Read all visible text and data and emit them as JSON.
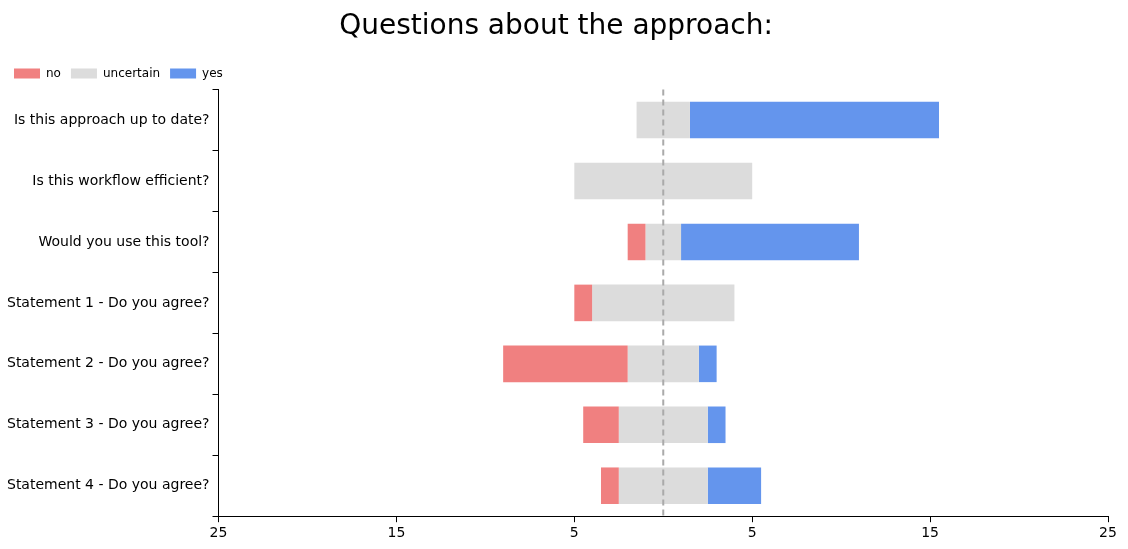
{
  "chart_data": {
    "type": "bar",
    "title": "Questions about the approach:",
    "orientation": "horizontal",
    "categories": [
      "Is this approach up to date?",
      "Is this workflow efficient?",
      "Would you use this tool?",
      "Statement 1 - Do you agree?",
      "Statement 2 - Do you agree?",
      "Statement 3 - Do you agree?",
      "Statement 4 - Do you agree?"
    ],
    "series": [
      {
        "name": "no",
        "color": "#f08080",
        "base": [
          null,
          null,
          -2,
          -5,
          -9,
          -4.5,
          -3.5
        ],
        "values": [
          null,
          null,
          1,
          1,
          7,
          2,
          1
        ]
      },
      {
        "name": "uncertain",
        "color": "#dcdcdc",
        "base": [
          -1.5,
          -5,
          -1,
          -4,
          -2,
          -2.5,
          -2.5
        ],
        "values": [
          3,
          10,
          2,
          8,
          4,
          5,
          5
        ]
      },
      {
        "name": "yes",
        "color": "#6495ed",
        "base": [
          1.5,
          null,
          1,
          null,
          2,
          2.5,
          2.5
        ],
        "values": [
          14,
          null,
          10,
          null,
          1,
          1,
          3
        ]
      }
    ],
    "xlim": [
      -25,
      25
    ],
    "xticks": [
      {
        "value": -25,
        "label": "25"
      },
      {
        "value": -15,
        "label": "15"
      },
      {
        "value": -5,
        "label": "5"
      },
      {
        "value": 5,
        "label": "5"
      },
      {
        "value": 15,
        "label": "15"
      },
      {
        "value": 25,
        "label": "25"
      }
    ],
    "ref_lines": [
      {
        "axis": "x",
        "value": 0,
        "color": "#aaaaaa",
        "line_style": "dashed"
      }
    ],
    "grid": false,
    "legend": "top left"
  }
}
